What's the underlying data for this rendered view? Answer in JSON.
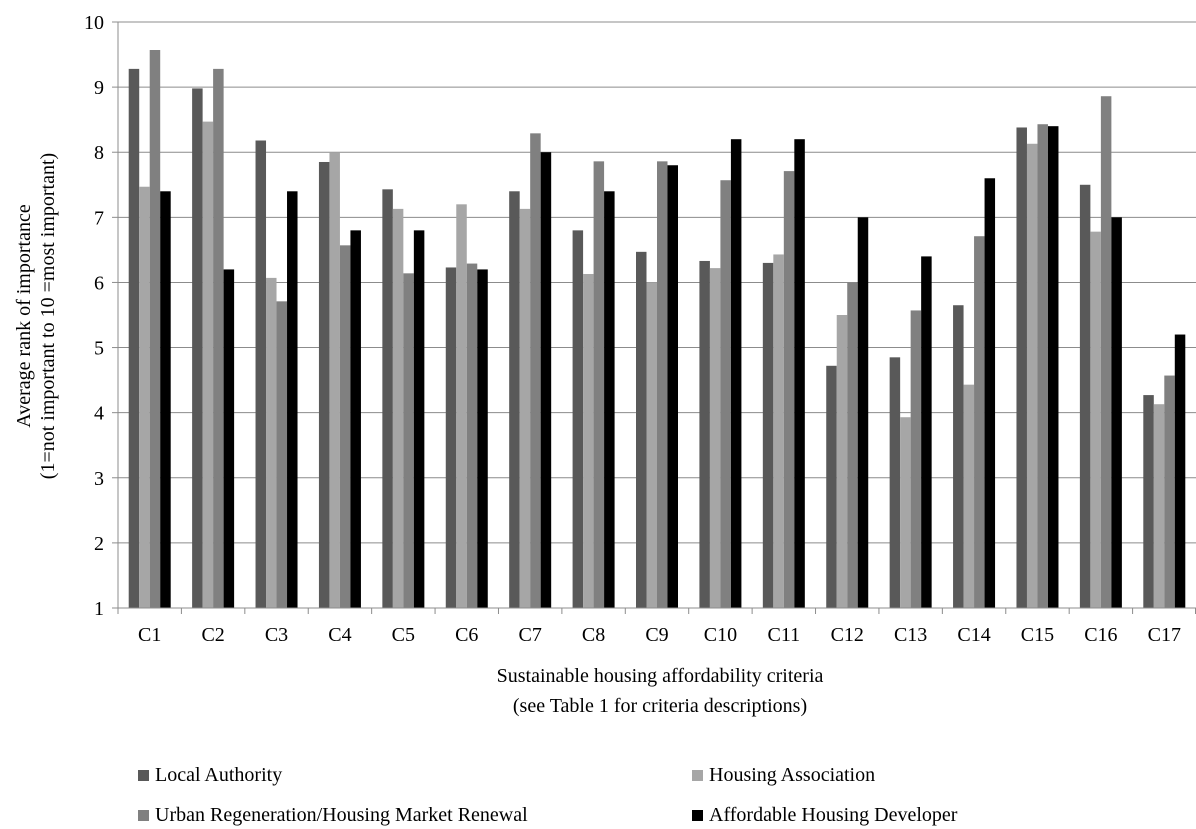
{
  "chart_data": {
    "type": "bar",
    "xlabel": [
      "Sustainable housing affordability criteria",
      "(see Table 1 for criteria descriptions)"
    ],
    "ylabel": [
      "Average rank of importance",
      "(1=not important to 10 =most important)"
    ],
    "ylim": [
      1,
      10
    ],
    "yticks": [
      "1",
      "2",
      "3",
      "4",
      "5",
      "6",
      "7",
      "8",
      "9",
      "10"
    ],
    "grid": "horizontal",
    "legend_position": "bottom",
    "categories": [
      "C1",
      "C2",
      "C3",
      "C4",
      "C5",
      "C6",
      "C7",
      "C8",
      "C9",
      "C10",
      "C11",
      "C12",
      "C13",
      "C14",
      "C15",
      "C16",
      "C17"
    ],
    "series": [
      {
        "name": "Local Authority",
        "color": "#595959",
        "values": [
          9.28,
          8.98,
          8.18,
          7.85,
          7.43,
          6.23,
          7.4,
          6.8,
          6.47,
          6.33,
          6.3,
          4.72,
          4.85,
          5.65,
          8.38,
          7.5,
          4.27
        ]
      },
      {
        "name": "Housing Association",
        "color": "#a6a6a6",
        "values": [
          7.47,
          8.47,
          6.07,
          8.0,
          7.13,
          7.2,
          7.13,
          6.13,
          6.0,
          6.22,
          6.43,
          5.5,
          3.93,
          4.43,
          8.13,
          6.78,
          4.13
        ]
      },
      {
        "name": "Urban Regeneration/Housing Market Renewal",
        "color": "#808080",
        "values": [
          9.57,
          9.28,
          5.71,
          6.57,
          6.14,
          6.29,
          8.29,
          7.86,
          7.86,
          7.57,
          7.71,
          6.0,
          5.57,
          6.71,
          8.43,
          8.86,
          4.57
        ]
      },
      {
        "name": "Affordable Housing Developer",
        "color": "#000000",
        "values": [
          7.4,
          6.2,
          7.4,
          6.8,
          6.8,
          6.2,
          8.0,
          7.4,
          7.8,
          8.2,
          8.2,
          7.0,
          6.4,
          7.6,
          8.4,
          7.0,
          5.2
        ]
      }
    ]
  }
}
